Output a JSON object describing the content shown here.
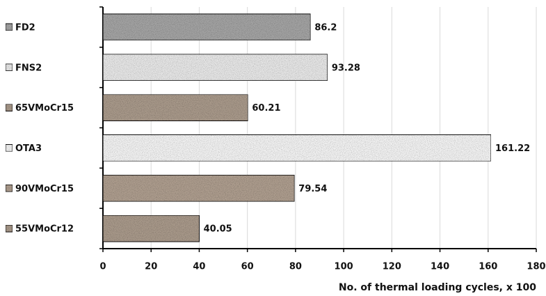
{
  "chart_data": {
    "type": "hbar",
    "categories": [
      "FD2",
      "FNS2",
      "65VMoCr15",
      "OTA3",
      "90VMoCr15",
      "55VMoCr12"
    ],
    "values": [
      86.2,
      93.28,
      60.21,
      161.22,
      79.54,
      40.05
    ],
    "colors": [
      "#a3a3a3",
      "#e6e6e6",
      "#a8998a",
      "#f2f2f2",
      "#ad9d8e",
      "#a8998a"
    ],
    "xlabel": "No. of thermal loading cycles, x 100",
    "xlim": [
      0,
      180
    ],
    "xticks": [
      0,
      20,
      40,
      60,
      80,
      100,
      120,
      140,
      160,
      180
    ],
    "grid": true
  }
}
